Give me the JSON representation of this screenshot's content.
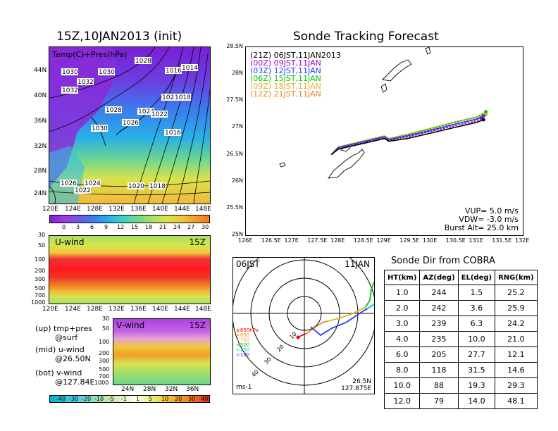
{
  "left_title": "15Z,10JAN2013 (init)",
  "map_panel": {
    "label": "Temp(C)+Pres(hPa)",
    "lat_ticks": [
      "44N",
      "40N",
      "36N",
      "32N",
      "28N",
      "24N"
    ],
    "lon_ticks": [
      "120E",
      "124E",
      "128E",
      "132E",
      "136E",
      "140E",
      "144E",
      "148E"
    ],
    "isobar_labels": [
      "1028",
      "1030",
      "1030",
      "1032",
      "1016",
      "1014",
      "1032",
      "1020",
      "1018",
      "1028",
      "1024",
      "1022",
      "1030",
      "1026",
      "1016",
      "1026",
      "1024",
      "1022",
      "1020",
      "1018"
    ],
    "colorbar_labels": [
      "0",
      "3",
      "6",
      "9",
      "12",
      "15",
      "18",
      "21",
      "24",
      "27",
      "30"
    ]
  },
  "u_panel": {
    "label": "U-wind",
    "time": "15Z",
    "pressure_ticks": [
      "30",
      "50",
      "100",
      "200",
      "300",
      "500",
      "700",
      "1000"
    ],
    "lon_ticks": [
      "120E",
      "124E",
      "128E",
      "132E",
      "136E",
      "140E",
      "144E",
      "148E"
    ]
  },
  "v_panel": {
    "label": "V-wind",
    "time": "15Z",
    "pressure_ticks": [
      "30",
      "50",
      "100",
      "200",
      "300",
      "500",
      "700",
      "1000"
    ],
    "lat_ticks": [
      "24N",
      "28N",
      "32N",
      "36N"
    ],
    "colorbar_labels": [
      "-40",
      "-30",
      "-20",
      "-10",
      "-5",
      "-1",
      "1",
      "5",
      "10",
      "20",
      "30",
      "40"
    ]
  },
  "notes": [
    {
      "line1": "(up) tmp+pres",
      "line2": "@surf"
    },
    {
      "line1": "(mid) u-wind",
      "line2": "@26.50N"
    },
    {
      "line1": "(bot) v-wind",
      "line2": "@127.84E"
    }
  ],
  "track_panel": {
    "title": "Sonde Tracking Forecast",
    "legend": [
      {
        "text": "(21Z) 06JST,11JAN2013",
        "color": "#000000"
      },
      {
        "text": "(00Z) 09JST,11JAN",
        "color": "#a000c8"
      },
      {
        "text": "(03Z) 12JST,11JAN",
        "color": "#1e3cff"
      },
      {
        "text": "(06Z) 15JST,11JAN",
        "color": "#00c800"
      },
      {
        "text": "(09Z) 18JST,11JAN",
        "color": "#e6af2d"
      },
      {
        "text": "(12Z) 21JST,11JAN",
        "color": "#f08228"
      }
    ],
    "lat_ticks": [
      "28.5N",
      "28N",
      "27.5N",
      "27N",
      "26.5N",
      "26N",
      "25.5N",
      "25N"
    ],
    "lon_ticks": [
      "126E",
      "126.5E",
      "127E",
      "127.5E",
      "128E",
      "128.5E",
      "129E",
      "129.5E",
      "130E",
      "130.5E",
      "131E",
      "131.5E",
      "132E"
    ],
    "vup": "VUP= 5.0 m/s",
    "vdw": "VDW= -3.0 m/s",
    "burst": "Burst Alt= 25.0 km"
  },
  "polar_panel": {
    "time_label": "06JST",
    "date_label": "11JAN",
    "ring_labels": [
      "10",
      "20",
      "30",
      "40"
    ],
    "legend": [
      {
        "text": "≥850hPa",
        "color": "#ff0000"
      },
      {
        "text": "<850",
        "color": "#ff8c00"
      },
      {
        "text": "<700",
        "color": "#e6af2d"
      },
      {
        "text": "<500",
        "color": "#00c800"
      },
      {
        "text": "<250",
        "color": "#00c8c8"
      },
      {
        "text": "<100",
        "color": "#1e3cff"
      }
    ],
    "unit": "ms-1",
    "lat": "26.5N",
    "lon": "127.875E"
  },
  "table": {
    "title": "Sonde Dir from COBRA",
    "headers": [
      "HT(km)",
      "AZ(deg)",
      "EL(deg)",
      "RNG(km)"
    ],
    "rows": [
      [
        "1.0",
        "244",
        "1.5",
        "25.2"
      ],
      [
        "2.0",
        "242",
        "3.6",
        "25.9"
      ],
      [
        "3.0",
        "239",
        "6.3",
        "24.2"
      ],
      [
        "4.0",
        "235",
        "10.0",
        "21.0"
      ],
      [
        "6.0",
        "205",
        "27.7",
        "12.1"
      ],
      [
        "8.0",
        "118",
        "31.5",
        "14.6"
      ],
      [
        "10.0",
        "88",
        "19.3",
        "29.3"
      ],
      [
        "12.0",
        "79",
        "14.0",
        "48.1"
      ]
    ]
  },
  "chart_data": [
    {
      "type": "line",
      "title": "Sonde Tracking Forecast",
      "xlabel": "",
      "ylabel": "",
      "xlim": [
        126.0,
        132.0
      ],
      "ylim": [
        25.0,
        28.5
      ],
      "series": [
        {
          "name": "(21Z) 06JST,11JAN2013",
          "x": [
            127.85,
            128.0,
            128.5,
            129.0,
            129.1,
            129.5,
            130.0,
            130.5,
            131.0,
            131.15
          ],
          "y": [
            26.5,
            26.6,
            26.7,
            26.8,
            26.75,
            26.8,
            26.9,
            27.0,
            27.1,
            27.15
          ]
        },
        {
          "name": "(00Z) 09JST,11JAN",
          "x": [
            127.85,
            128.0,
            128.5,
            129.0,
            129.1,
            129.5,
            130.0,
            130.5,
            131.0,
            131.1
          ],
          "y": [
            26.5,
            26.62,
            26.72,
            26.82,
            26.77,
            26.83,
            26.93,
            27.03,
            27.13,
            27.18
          ]
        },
        {
          "name": "(03Z) 12JST,11JAN",
          "x": [
            127.85,
            128.0,
            128.5,
            129.0,
            129.1,
            129.5,
            130.0,
            130.5,
            131.0,
            131.15
          ],
          "y": [
            26.5,
            26.63,
            26.73,
            26.83,
            26.78,
            26.85,
            26.95,
            27.06,
            27.16,
            27.22
          ]
        },
        {
          "name": "(06Z) 15JST,11JAN",
          "x": [
            127.85,
            128.0,
            128.5,
            129.0,
            129.1,
            129.5,
            130.0,
            130.5,
            131.0,
            131.2
          ],
          "y": [
            26.5,
            26.64,
            26.74,
            26.84,
            26.79,
            26.87,
            26.98,
            27.1,
            27.2,
            27.3
          ]
        },
        {
          "name": "(09Z) 18JST,11JAN",
          "x": [
            127.85,
            128.0,
            128.5,
            129.0,
            129.1,
            129.5,
            130.0,
            130.5,
            131.0,
            131.2
          ],
          "y": [
            26.5,
            26.64,
            26.75,
            26.85,
            26.8,
            26.88,
            26.99,
            27.1,
            27.2,
            27.27
          ]
        },
        {
          "name": "(12Z) 21JST,11JAN",
          "x": [
            127.85,
            128.0,
            128.5,
            129.0,
            129.1,
            129.5,
            130.0,
            130.5,
            131.0,
            131.2
          ],
          "y": [
            26.5,
            26.63,
            26.74,
            26.84,
            26.79,
            26.86,
            26.96,
            27.07,
            27.17,
            27.25
          ]
        }
      ]
    },
    {
      "type": "table",
      "title": "Sonde Dir from COBRA",
      "columns": [
        "HT(km)",
        "AZ(deg)",
        "EL(deg)",
        "RNG(km)"
      ],
      "rows": [
        [
          1.0,
          244,
          1.5,
          25.2
        ],
        [
          2.0,
          242,
          3.6,
          25.9
        ],
        [
          3.0,
          239,
          6.3,
          24.2
        ],
        [
          4.0,
          235,
          10.0,
          21.0
        ],
        [
          6.0,
          205,
          27.7,
          12.1
        ],
        [
          8.0,
          118,
          31.5,
          14.6
        ],
        [
          10.0,
          88,
          19.3,
          29.3
        ],
        [
          12.0,
          79,
          14.0,
          48.1
        ]
      ]
    }
  ]
}
